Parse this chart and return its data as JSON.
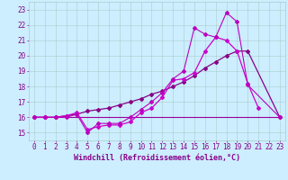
{
  "line1": {
    "x": [
      0,
      1,
      2,
      3,
      4,
      5,
      6,
      7,
      8,
      9,
      10,
      11,
      12,
      13,
      14,
      15,
      16,
      17,
      18,
      19,
      20,
      21,
      22,
      23
    ],
    "y": [
      16,
      16,
      16,
      16,
      16,
      16,
      16,
      16,
      16,
      16,
      16,
      16,
      16,
      16,
      16,
      16,
      16,
      16,
      16,
      16,
      16,
      16,
      16,
      16
    ],
    "color": "#990099",
    "linewidth": 0.8
  },
  "line2": {
    "x": [
      0,
      1,
      2,
      3,
      4,
      5,
      6,
      7,
      8,
      9,
      10,
      11,
      12,
      13,
      14,
      15,
      16,
      17,
      18,
      19,
      20,
      21,
      22,
      23
    ],
    "y": [
      16,
      16,
      16,
      16.1,
      16.3,
      15.2,
      15.4,
      15.5,
      15.5,
      15.7,
      16.3,
      16.6,
      17.3,
      18.4,
      18.5,
      18.9,
      20.3,
      21.2,
      21.0,
      20.3,
      18.2,
      16.6,
      null,
      null
    ],
    "color": "#cc00cc",
    "linewidth": 0.9,
    "marker": "D",
    "markersize": 2.0
  },
  "line3": {
    "x": [
      0,
      1,
      2,
      3,
      4,
      5,
      6,
      7,
      8,
      9,
      10,
      11,
      12,
      13,
      14,
      15,
      16,
      17,
      18,
      19,
      20,
      21,
      22,
      23
    ],
    "y": [
      16,
      16,
      16,
      16.1,
      16.2,
      16.4,
      16.5,
      16.6,
      16.8,
      17.0,
      17.2,
      17.5,
      17.7,
      18.0,
      18.3,
      18.7,
      19.2,
      19.6,
      20.0,
      20.3,
      20.3,
      null,
      null,
      16
    ],
    "color": "#880088",
    "linewidth": 0.9,
    "marker": "D",
    "markersize": 2.0
  },
  "line4": {
    "x": [
      0,
      1,
      2,
      3,
      4,
      5,
      6,
      7,
      8,
      9,
      10,
      11,
      12,
      13,
      14,
      15,
      16,
      17,
      18,
      19,
      20,
      21,
      22,
      23
    ],
    "y": [
      16,
      16,
      16,
      16,
      16.2,
      15.0,
      15.6,
      15.6,
      15.6,
      16.0,
      16.5,
      17.0,
      17.6,
      18.5,
      19.0,
      21.8,
      21.4,
      21.2,
      22.8,
      22.2,
      18.1,
      null,
      null,
      16
    ],
    "color": "#bb00bb",
    "linewidth": 0.8,
    "marker": "D",
    "markersize": 2.0
  },
  "xlim": [
    -0.5,
    23.5
  ],
  "ylim": [
    14.5,
    23.5
  ],
  "yticks": [
    15,
    16,
    17,
    18,
    19,
    20,
    21,
    22,
    23
  ],
  "xticks": [
    0,
    1,
    2,
    3,
    4,
    5,
    6,
    7,
    8,
    9,
    10,
    11,
    12,
    13,
    14,
    15,
    16,
    17,
    18,
    19,
    20,
    21,
    22,
    23
  ],
  "xlabel": "Windchill (Refroidissement éolien,°C)",
  "bg_color": "#cceeff",
  "grid_color": "#aacccc",
  "tick_color": "#880088",
  "label_fontsize": 6,
  "tick_fontsize": 5.5
}
